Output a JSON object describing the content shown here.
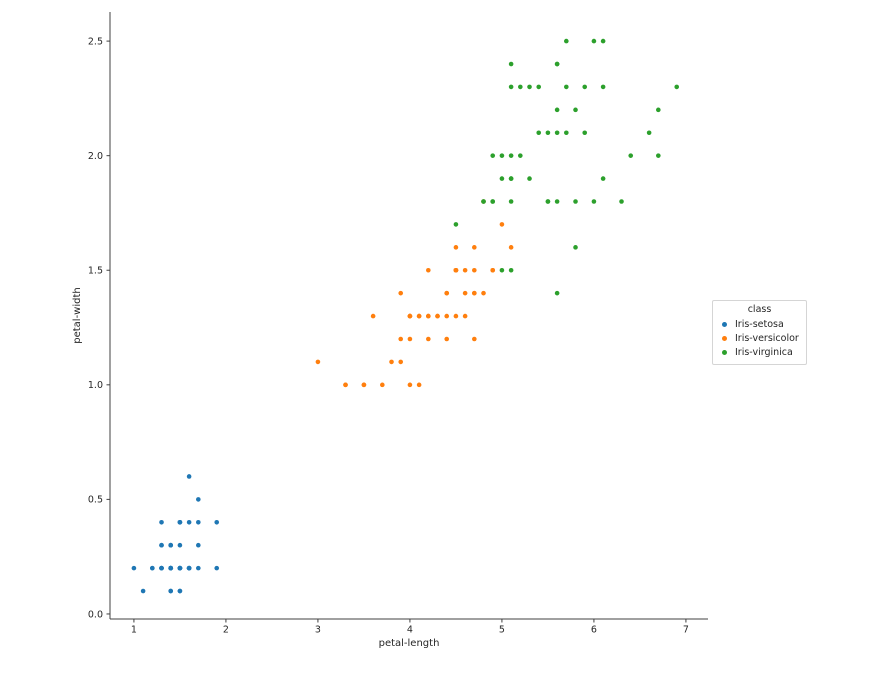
{
  "chart_data": {
    "type": "scatter",
    "title": "",
    "xlabel": "petal-length",
    "ylabel": "petal-width",
    "xlim": [
      0.74,
      7.24
    ],
    "ylim": [
      -0.022,
      2.627
    ],
    "xticks": [
      1,
      2,
      3,
      4,
      5,
      6,
      7
    ],
    "xtick_labels": [
      "1",
      "2",
      "3",
      "4",
      "5",
      "6",
      "7"
    ],
    "yticks": [
      0.0,
      0.5,
      1.0,
      1.5,
      2.0,
      2.5
    ],
    "ytick_labels": [
      "0.0",
      "0.5",
      "1.0",
      "1.5",
      "2.0",
      "2.5"
    ],
    "grid": false,
    "background_color": "#ffffff",
    "text_color": "#262626",
    "spine_color": "#404040",
    "legend_title": "class",
    "legend_position": "right-outside-center",
    "series": [
      {
        "name": "Iris-setosa",
        "color": "#1f77b4",
        "points": [
          [
            1.4,
            0.2
          ],
          [
            1.4,
            0.2
          ],
          [
            1.3,
            0.2
          ],
          [
            1.5,
            0.2
          ],
          [
            1.4,
            0.2
          ],
          [
            1.7,
            0.4
          ],
          [
            1.4,
            0.3
          ],
          [
            1.5,
            0.2
          ],
          [
            1.4,
            0.2
          ],
          [
            1.5,
            0.1
          ],
          [
            1.5,
            0.2
          ],
          [
            1.6,
            0.2
          ],
          [
            1.4,
            0.1
          ],
          [
            1.1,
            0.1
          ],
          [
            1.2,
            0.2
          ],
          [
            1.5,
            0.4
          ],
          [
            1.3,
            0.4
          ],
          [
            1.4,
            0.3
          ],
          [
            1.7,
            0.3
          ],
          [
            1.5,
            0.3
          ],
          [
            1.7,
            0.2
          ],
          [
            1.5,
            0.4
          ],
          [
            1.0,
            0.2
          ],
          [
            1.7,
            0.5
          ],
          [
            1.9,
            0.2
          ],
          [
            1.6,
            0.2
          ],
          [
            1.6,
            0.4
          ],
          [
            1.5,
            0.2
          ],
          [
            1.4,
            0.2
          ],
          [
            1.6,
            0.2
          ],
          [
            1.6,
            0.2
          ],
          [
            1.5,
            0.4
          ],
          [
            1.5,
            0.1
          ],
          [
            1.4,
            0.2
          ],
          [
            1.5,
            0.2
          ],
          [
            1.2,
            0.2
          ],
          [
            1.3,
            0.2
          ],
          [
            1.4,
            0.1
          ],
          [
            1.3,
            0.2
          ],
          [
            1.5,
            0.2
          ],
          [
            1.3,
            0.3
          ],
          [
            1.3,
            0.3
          ],
          [
            1.3,
            0.2
          ],
          [
            1.6,
            0.6
          ],
          [
            1.9,
            0.4
          ],
          [
            1.4,
            0.3
          ],
          [
            1.6,
            0.2
          ],
          [
            1.4,
            0.2
          ],
          [
            1.5,
            0.2
          ],
          [
            1.4,
            0.2
          ]
        ]
      },
      {
        "name": "Iris-versicolor",
        "color": "#ff7f0e",
        "points": [
          [
            4.7,
            1.4
          ],
          [
            4.5,
            1.5
          ],
          [
            4.9,
            1.5
          ],
          [
            4.0,
            1.3
          ],
          [
            4.6,
            1.5
          ],
          [
            4.5,
            1.3
          ],
          [
            4.7,
            1.6
          ],
          [
            3.3,
            1.0
          ],
          [
            4.6,
            1.3
          ],
          [
            3.9,
            1.4
          ],
          [
            3.5,
            1.0
          ],
          [
            4.2,
            1.5
          ],
          [
            4.0,
            1.0
          ],
          [
            4.7,
            1.4
          ],
          [
            3.6,
            1.3
          ],
          [
            4.4,
            1.4
          ],
          [
            4.5,
            1.5
          ],
          [
            4.1,
            1.0
          ],
          [
            4.5,
            1.5
          ],
          [
            3.9,
            1.1
          ],
          [
            4.8,
            1.8
          ],
          [
            4.0,
            1.3
          ],
          [
            4.9,
            1.5
          ],
          [
            4.7,
            1.2
          ],
          [
            4.3,
            1.3
          ],
          [
            4.4,
            1.4
          ],
          [
            4.8,
            1.4
          ],
          [
            5.0,
            1.7
          ],
          [
            4.5,
            1.5
          ],
          [
            3.5,
            1.0
          ],
          [
            3.8,
            1.1
          ],
          [
            3.7,
            1.0
          ],
          [
            3.9,
            1.2
          ],
          [
            5.1,
            1.6
          ],
          [
            4.5,
            1.5
          ],
          [
            4.5,
            1.6
          ],
          [
            4.7,
            1.5
          ],
          [
            4.4,
            1.3
          ],
          [
            4.1,
            1.3
          ],
          [
            4.0,
            1.3
          ],
          [
            4.4,
            1.2
          ],
          [
            4.6,
            1.4
          ],
          [
            4.0,
            1.2
          ],
          [
            3.3,
            1.0
          ],
          [
            4.2,
            1.3
          ],
          [
            4.2,
            1.2
          ],
          [
            4.2,
            1.3
          ],
          [
            4.3,
            1.3
          ],
          [
            3.0,
            1.1
          ],
          [
            4.1,
            1.3
          ]
        ]
      },
      {
        "name": "Iris-virginica",
        "color": "#2ca02c",
        "points": [
          [
            6.0,
            2.5
          ],
          [
            5.1,
            1.9
          ],
          [
            5.9,
            2.1
          ],
          [
            5.6,
            1.8
          ],
          [
            5.8,
            2.2
          ],
          [
            6.6,
            2.1
          ],
          [
            4.5,
            1.7
          ],
          [
            6.3,
            1.8
          ],
          [
            5.8,
            1.8
          ],
          [
            6.1,
            2.5
          ],
          [
            5.1,
            2.0
          ],
          [
            5.3,
            1.9
          ],
          [
            5.5,
            2.1
          ],
          [
            5.0,
            2.0
          ],
          [
            5.1,
            2.4
          ],
          [
            5.3,
            2.3
          ],
          [
            5.5,
            1.8
          ],
          [
            6.7,
            2.2
          ],
          [
            6.9,
            2.3
          ],
          [
            5.0,
            1.5
          ],
          [
            5.7,
            2.3
          ],
          [
            4.9,
            2.0
          ],
          [
            6.7,
            2.0
          ],
          [
            4.9,
            1.8
          ],
          [
            5.7,
            2.1
          ],
          [
            6.0,
            1.8
          ],
          [
            4.8,
            1.8
          ],
          [
            4.9,
            1.8
          ],
          [
            5.6,
            2.1
          ],
          [
            5.8,
            1.6
          ],
          [
            6.1,
            1.9
          ],
          [
            6.4,
            2.0
          ],
          [
            5.6,
            2.2
          ],
          [
            5.1,
            1.5
          ],
          [
            5.6,
            1.4
          ],
          [
            6.1,
            2.3
          ],
          [
            5.6,
            2.4
          ],
          [
            5.5,
            1.8
          ],
          [
            4.8,
            1.8
          ],
          [
            5.4,
            2.1
          ],
          [
            5.6,
            2.4
          ],
          [
            5.1,
            2.3
          ],
          [
            5.1,
            1.9
          ],
          [
            5.9,
            2.3
          ],
          [
            5.7,
            2.5
          ],
          [
            5.2,
            2.3
          ],
          [
            5.0,
            1.9
          ],
          [
            5.2,
            2.0
          ],
          [
            5.4,
            2.3
          ],
          [
            5.1,
            1.8
          ]
        ]
      }
    ]
  }
}
